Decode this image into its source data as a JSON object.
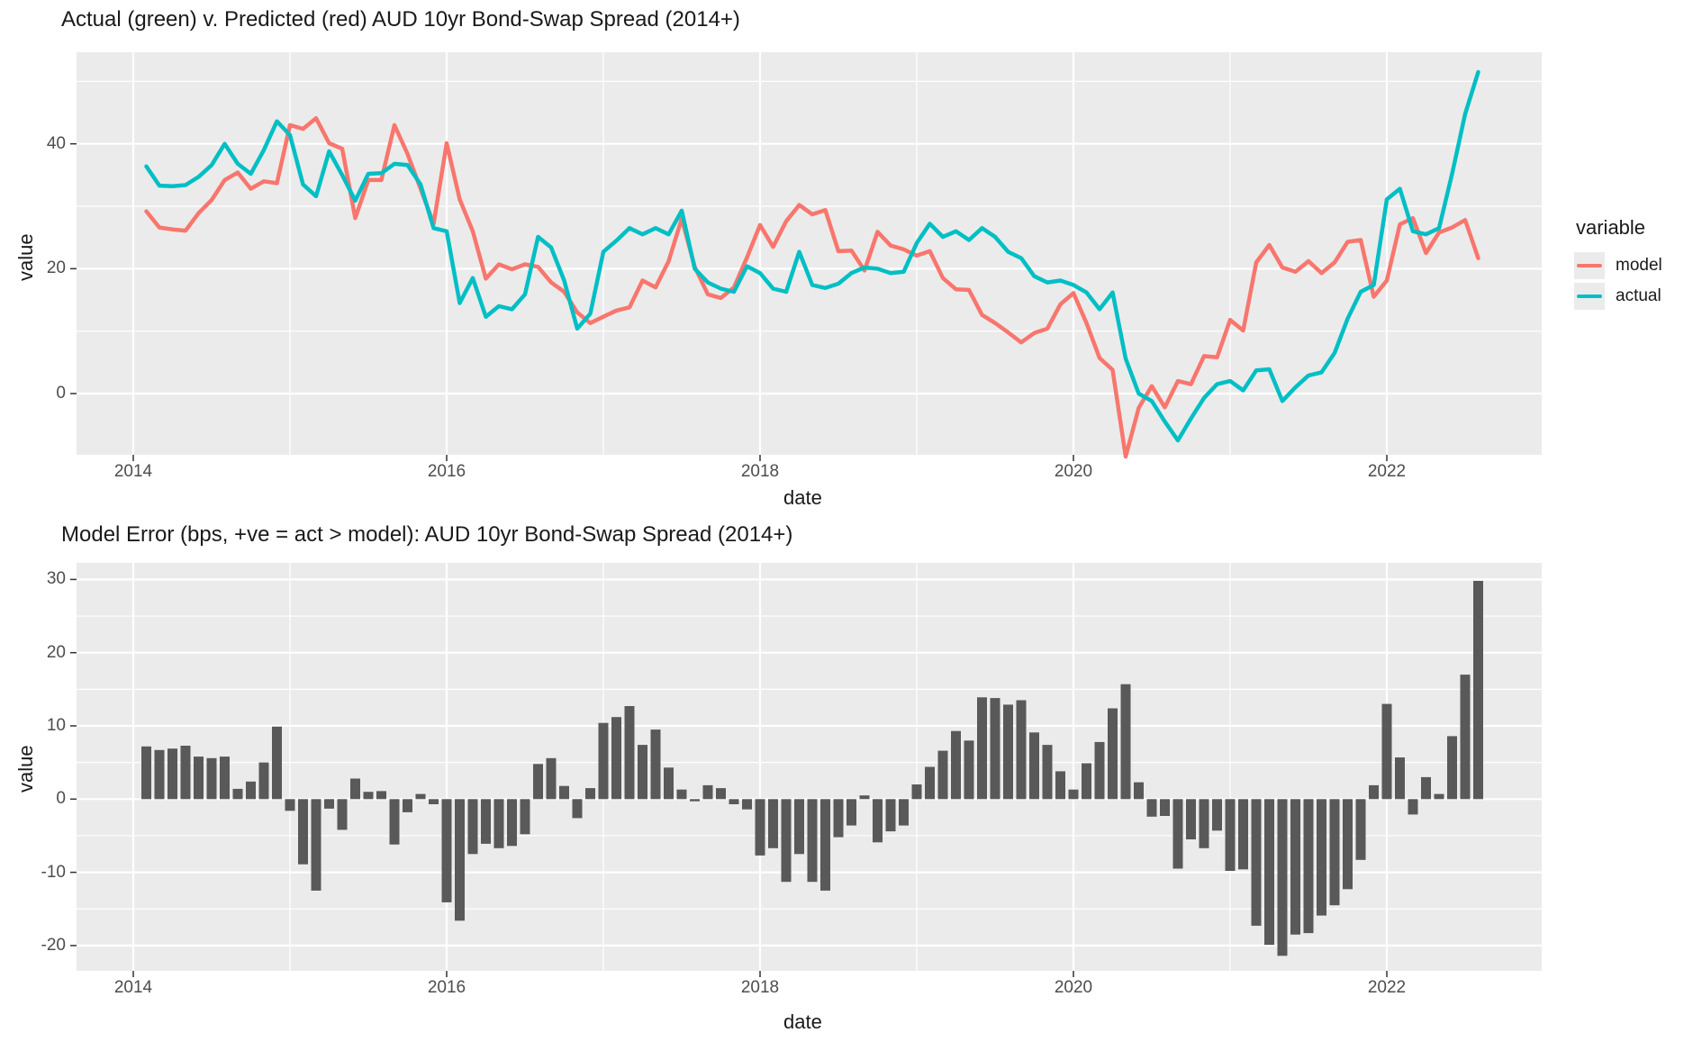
{
  "page": {
    "top_chart_title": "Actual (green) v. Predicted (red) AUD 10yr Bond-Swap Spread (2014+)",
    "bottom_chart_title": "Model Error (bps, +ve = act > model): AUD 10yr Bond-Swap Spread (2014+)",
    "legend": {
      "title": "variable",
      "items": [
        {
          "label": "model",
          "color": "#F8766D"
        },
        {
          "label": "actual",
          "color": "#00BFC4"
        }
      ]
    },
    "colors": {
      "model_line": "#F8766D",
      "actual_line": "#00BFC4",
      "bar_fill": "#595959",
      "panel_background": "#EBEBEB",
      "grid_major": "#FFFFFF",
      "axis_text": "#4D4D4D",
      "title_text": "#1A1A1A"
    }
  },
  "chart_data": [
    {
      "type": "line",
      "title": "Actual (green) v. Predicted (red) AUD 10yr Bond-Swap Spread (2014+)",
      "xlabel": "date",
      "ylabel": "value",
      "x_start": "2014-02",
      "x_step_months": 1,
      "x_tick_labels": [
        "2014",
        "2016",
        "2018",
        "2020",
        "2022"
      ],
      "x_tick_years": [
        2014,
        2016,
        2018,
        2020,
        2022
      ],
      "x_minor_years": [
        2015,
        2017,
        2019,
        2021
      ],
      "y_ticks": [
        0,
        20,
        40
      ],
      "y_minor": [
        10,
        30,
        50
      ],
      "ylim": [
        -9.8,
        54.7
      ],
      "grid": true,
      "legend_position": "right",
      "series": [
        {
          "name": "model",
          "color": "#F8766D",
          "values": [
            29.2,
            26.6,
            26.3,
            26.1,
            28.9,
            31.0,
            34.2,
            35.4,
            32.8,
            34.0,
            33.7,
            43.0,
            42.4,
            44.1,
            40.1,
            39.2,
            28.1,
            34.2,
            34.2,
            43.0,
            38.4,
            32.8,
            27.2,
            40.1,
            31.1,
            26.0,
            18.4,
            20.7,
            19.9,
            20.7,
            20.3,
            17.8,
            16.3,
            13.0,
            11.3,
            12.3,
            13.3,
            13.8,
            18.1,
            17.0,
            21.2,
            28.0,
            20.3,
            15.9,
            15.3,
            17.0,
            21.8,
            27.0,
            23.5,
            27.6,
            30.2,
            28.7,
            29.4,
            22.8,
            22.9,
            19.7,
            25.9,
            23.7,
            23.1,
            22.1,
            22.8,
            18.5,
            16.7,
            16.6,
            12.6,
            11.3,
            9.8,
            8.2,
            9.7,
            10.4,
            14.3,
            16.1,
            11.3,
            5.7,
            3.8,
            -10.1,
            -2.3,
            1.2,
            -2.2,
            2.0,
            1.5,
            6.0,
            5.8,
            11.8,
            10.1,
            21.0,
            23.8,
            20.2,
            19.5,
            21.2,
            19.3,
            21.0,
            24.3,
            24.6,
            15.5,
            18.1,
            27.1,
            28.1,
            22.5,
            25.8,
            26.6,
            27.8,
            21.7
          ]
        },
        {
          "name": "actual",
          "color": "#00BFC4",
          "values": [
            36.4,
            33.3,
            33.2,
            33.4,
            34.7,
            36.6,
            40.0,
            36.8,
            35.2,
            39.0,
            43.6,
            41.4,
            33.5,
            31.6,
            38.8,
            35.0,
            30.9,
            35.2,
            35.3,
            36.8,
            36.6,
            33.5,
            26.5,
            26.0,
            14.5,
            18.5,
            12.3,
            14.0,
            13.5,
            15.9,
            25.1,
            23.4,
            18.1,
            10.4,
            12.8,
            22.7,
            24.5,
            26.5,
            25.5,
            26.5,
            25.5,
            29.3,
            20.0,
            17.8,
            16.8,
            16.3,
            20.4,
            19.3,
            16.8,
            16.3,
            22.7,
            17.4,
            16.9,
            17.6,
            19.3,
            20.2,
            20.0,
            19.3,
            19.5,
            24.1,
            27.2,
            25.1,
            26.0,
            24.6,
            26.5,
            25.1,
            22.7,
            21.7,
            18.8,
            17.8,
            18.1,
            17.4,
            16.2,
            13.5,
            16.2,
            5.6,
            0.0,
            -1.2,
            -4.5,
            -7.5,
            -4.0,
            -0.7,
            1.5,
            2.0,
            0.5,
            3.7,
            3.9,
            -1.2,
            1.0,
            2.9,
            3.4,
            6.5,
            12.0,
            16.3,
            17.4,
            31.1,
            32.8,
            26.0,
            25.5,
            26.5,
            35.2,
            44.8,
            51.5
          ]
        }
      ]
    },
    {
      "type": "bar",
      "title": "Model Error (bps, +ve = act > model): AUD 10yr Bond-Swap Spread (2014+)",
      "xlabel": "date",
      "ylabel": "value",
      "x_start": "2014-02",
      "x_step_months": 1,
      "x_tick_labels": [
        "2014",
        "2016",
        "2018",
        "2020",
        "2022"
      ],
      "x_tick_years": [
        2014,
        2016,
        2018,
        2020,
        2022
      ],
      "x_minor_years": [
        2015,
        2017,
        2019,
        2021
      ],
      "y_ticks": [
        -20,
        -10,
        0,
        10,
        20,
        30
      ],
      "y_minor": [
        -15,
        -5,
        5,
        15,
        25
      ],
      "ylim": [
        -23.4,
        32.3
      ],
      "grid": true,
      "bar_color": "#595959",
      "values": [
        7.2,
        6.7,
        6.9,
        7.3,
        5.8,
        5.6,
        5.8,
        1.4,
        2.4,
        5.0,
        9.9,
        -1.6,
        -8.9,
        -12.5,
        -1.3,
        -4.2,
        2.8,
        1.0,
        1.1,
        -6.2,
        -1.8,
        0.7,
        -0.7,
        -14.1,
        -16.6,
        -7.5,
        -6.1,
        -6.7,
        -6.4,
        -4.8,
        4.8,
        5.6,
        1.8,
        -2.6,
        1.5,
        10.4,
        11.2,
        12.7,
        7.4,
        9.5,
        4.3,
        1.3,
        -0.3,
        1.9,
        1.5,
        -0.7,
        -1.4,
        -7.7,
        -6.7,
        -11.3,
        -7.5,
        -11.3,
        -12.5,
        -5.2,
        -3.6,
        0.5,
        -5.9,
        -4.4,
        -3.6,
        2.0,
        4.4,
        6.6,
        9.3,
        8.0,
        13.9,
        13.8,
        12.9,
        13.5,
        9.1,
        7.4,
        3.8,
        1.3,
        4.9,
        7.8,
        12.4,
        15.7,
        2.3,
        -2.4,
        -2.3,
        -9.5,
        -5.5,
        -6.7,
        -4.3,
        -9.8,
        -9.6,
        -17.3,
        -19.9,
        -21.4,
        -18.5,
        -18.3,
        -15.9,
        -14.5,
        -12.3,
        -8.3,
        1.9,
        13.0,
        5.7,
        -2.1,
        3.0,
        0.7,
        8.6,
        17.0,
        29.8
      ]
    }
  ]
}
